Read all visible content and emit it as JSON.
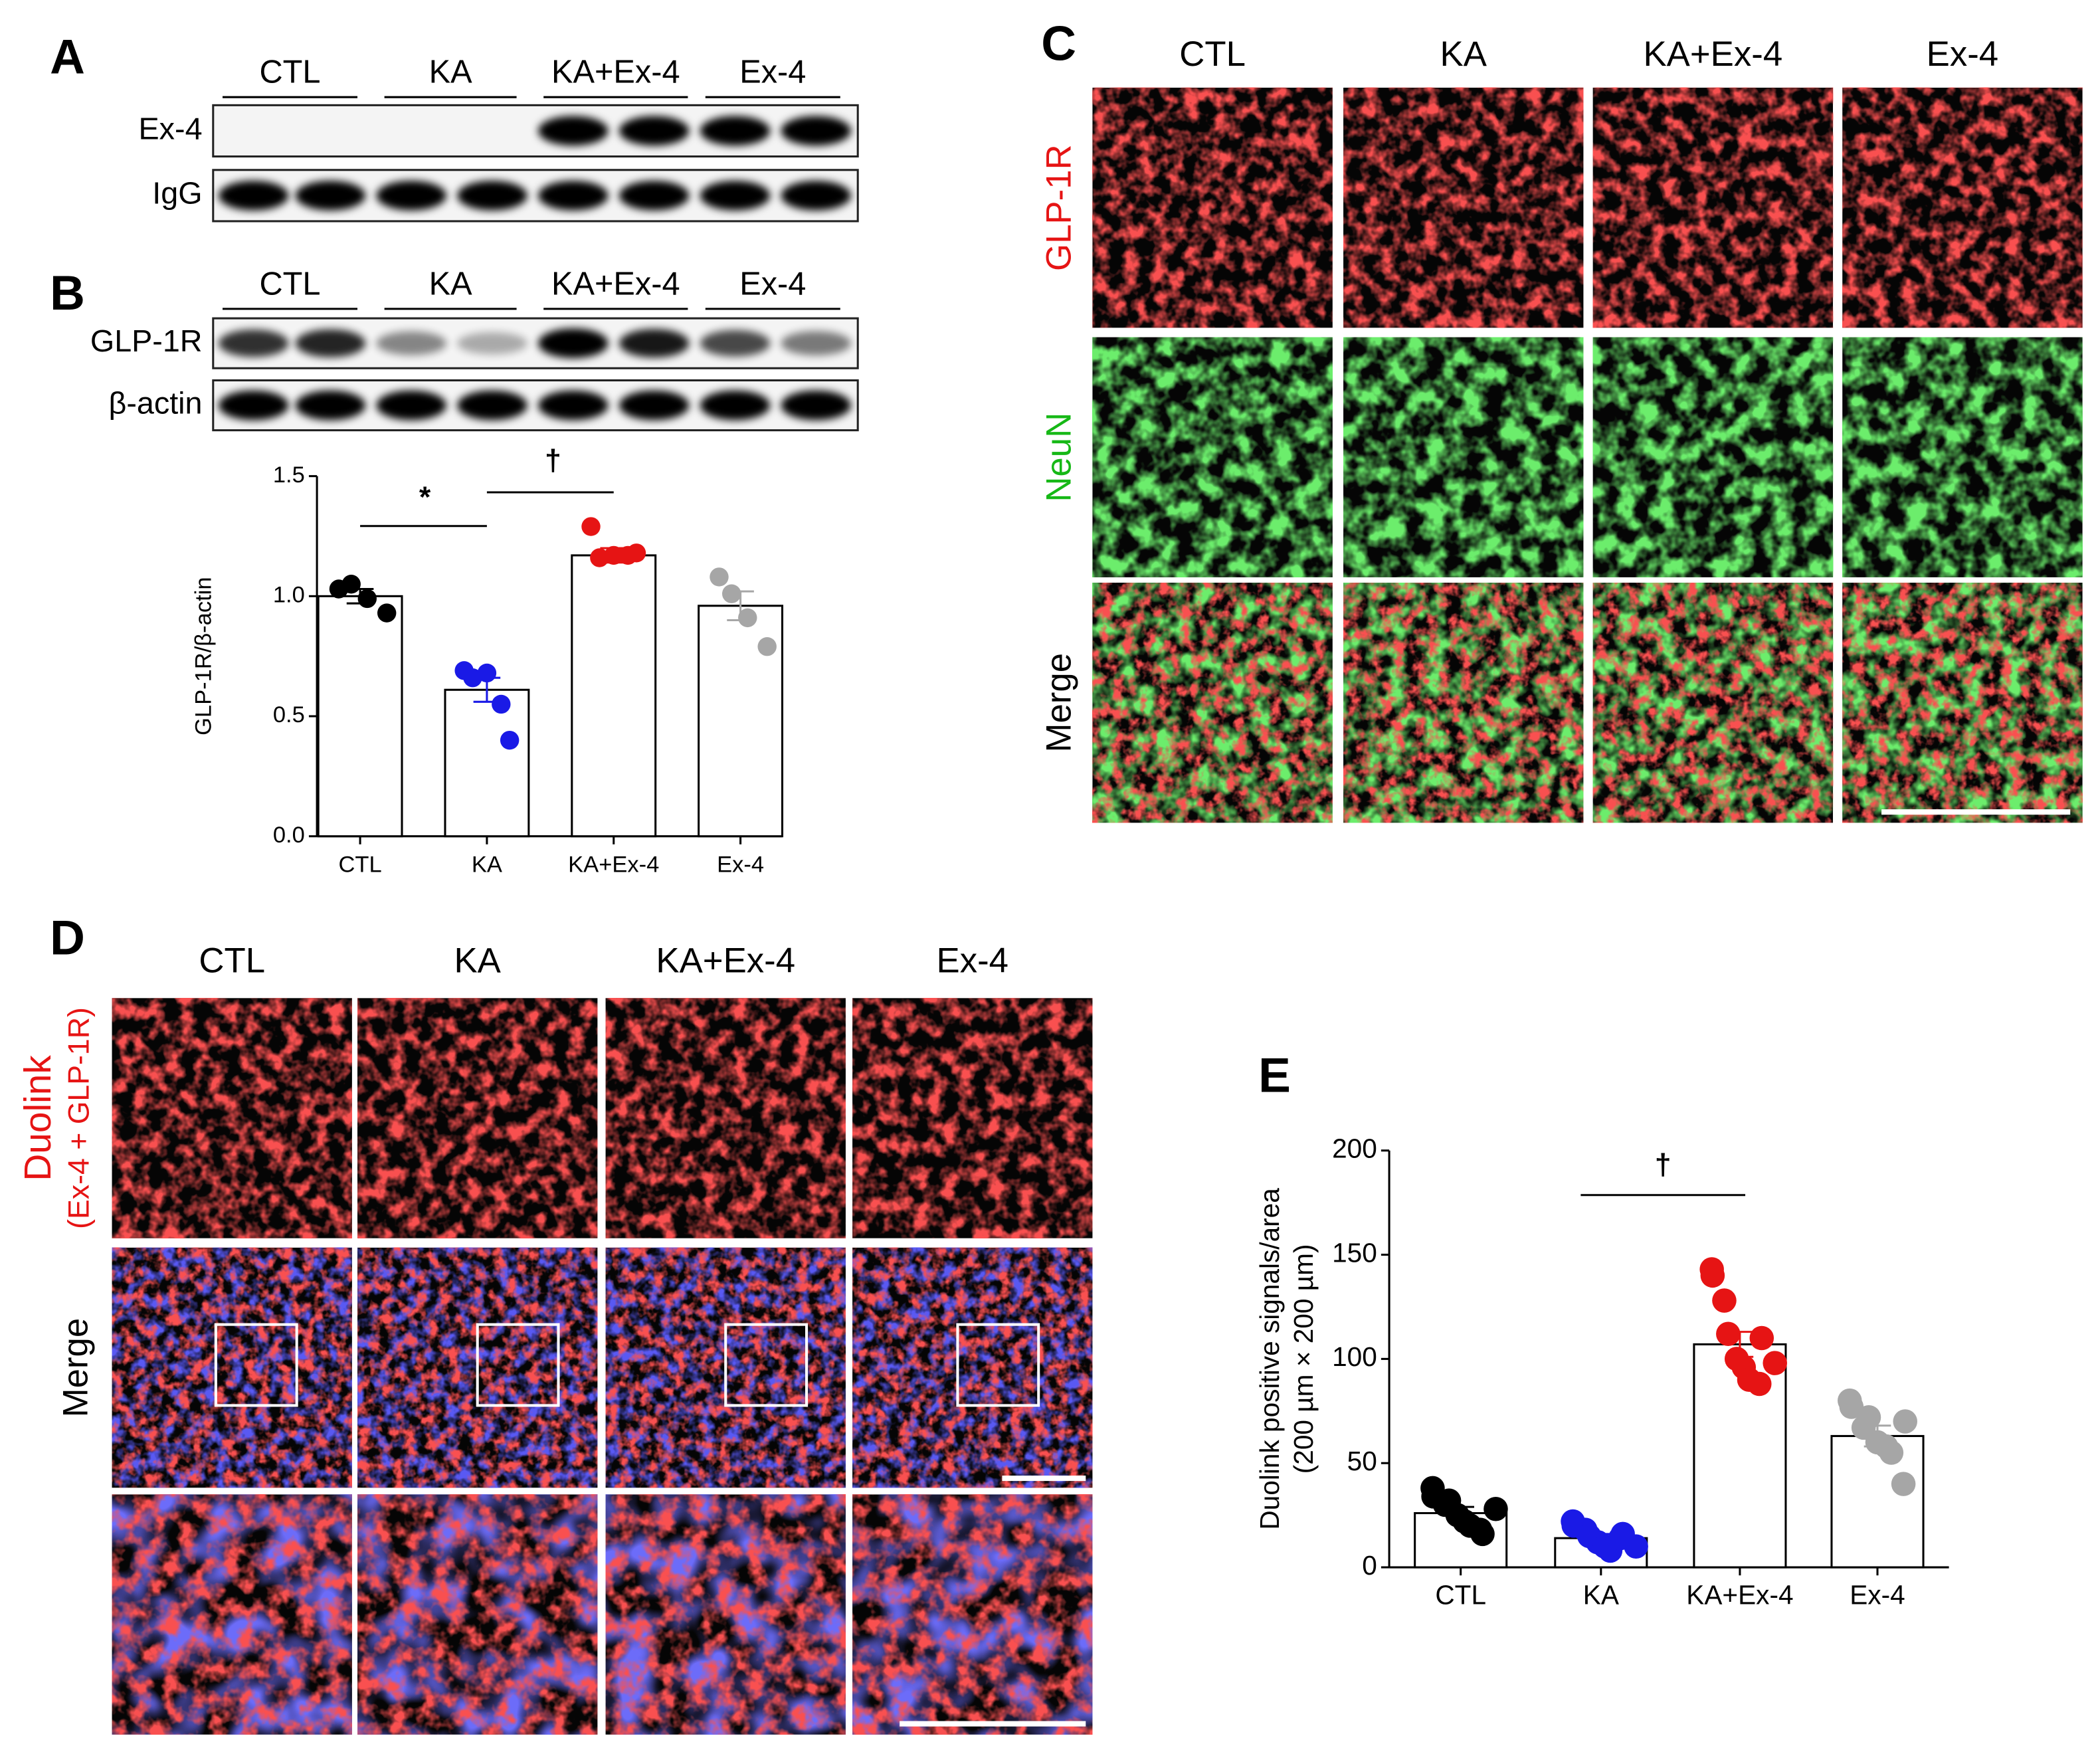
{
  "panel_labels": [
    "A",
    "B",
    "C",
    "D",
    "E"
  ],
  "blot_A": {
    "groups": [
      "CTL",
      "KA",
      "KA+Ex-4",
      "Ex-4"
    ],
    "rows": [
      "Ex-4",
      "IgG"
    ]
  },
  "blot_B": {
    "groups": [
      "CTL",
      "KA",
      "KA+Ex-4",
      "Ex-4"
    ],
    "rows": [
      "GLP-1R",
      "β-actin"
    ]
  },
  "panel_C": {
    "columns": [
      "CTL",
      "KA",
      "KA+Ex-4",
      "Ex-4"
    ],
    "rows": [
      "GLP-1R",
      "NeuN",
      "Merge"
    ]
  },
  "panel_D": {
    "columns": [
      "CTL",
      "KA",
      "KA+Ex-4",
      "Ex-4"
    ],
    "row_title": "Duolink",
    "row_subtitle": "(Ex-4 + GLP-1R)",
    "merge_label": "Merge"
  },
  "chart_data": [
    {
      "type": "bar",
      "ylabel": [
        "GLP-1R/β-actin"
      ],
      "categories": [
        "CTL",
        "KA",
        "KA+Ex-4",
        "Ex-4"
      ],
      "values": [
        1.0,
        0.61,
        1.17,
        0.96
      ],
      "errors": [
        0.03,
        0.05,
        0.03,
        0.06
      ],
      "points": [
        [
          1.03,
          1.05,
          0.99,
          0.93
        ],
        [
          0.69,
          0.66,
          0.68,
          0.55,
          0.4
        ],
        [
          1.29,
          1.16,
          1.17,
          1.17,
          1.18
        ],
        [
          1.08,
          1.01,
          0.91,
          0.79
        ]
      ],
      "colors": [
        "#000000",
        "#1a1ae6",
        "#e61414",
        "#a6a6a6"
      ],
      "ylim": [
        0,
        1.5
      ],
      "yticks": [
        {
          "value": 0,
          "label": "0.0"
        },
        0.5,
        {
          "value": 1,
          "label": "1.0"
        },
        1.5
      ],
      "annotations": [
        "*",
        "†"
      ]
    },
    {
      "type": "bar",
      "ylabel": [
        "Duolink positive signals/area",
        "(200 µm × 200 µm)"
      ],
      "categories": [
        "CTL",
        "KA",
        "KA+Ex-4",
        "Ex-4"
      ],
      "values": [
        26,
        14,
        107,
        63
      ],
      "errors": [
        3,
        2,
        6,
        5
      ],
      "points": [
        [
          38,
          34,
          30,
          32,
          25,
          22,
          20,
          18,
          16,
          28
        ],
        [
          22,
          20,
          18,
          15,
          12,
          10,
          8,
          14,
          16,
          10
        ],
        [
          143,
          140,
          128,
          112,
          100,
          96,
          90,
          88,
          110,
          98
        ],
        [
          80,
          77,
          67,
          72,
          60,
          58,
          55,
          40,
          70
        ]
      ],
      "colors": [
        "#000000",
        "#1a1ae6",
        "#e61414",
        "#a6a6a6"
      ],
      "ylim": [
        0,
        200
      ],
      "yticks": [
        0,
        50,
        100,
        150,
        200
      ],
      "annotations": [
        "†"
      ]
    }
  ]
}
